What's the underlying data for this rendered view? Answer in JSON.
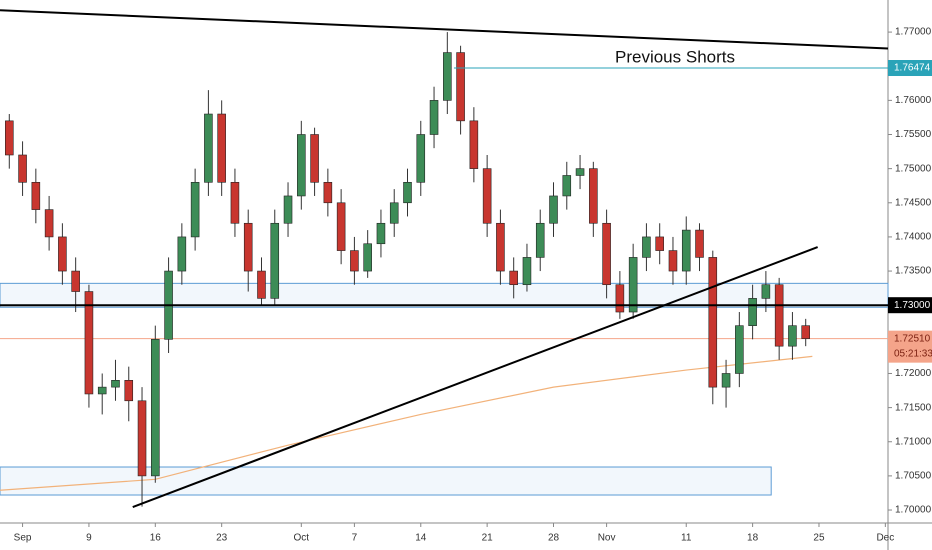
{
  "chart_data": {
    "type": "candlestick",
    "x": [
      -1,
      0,
      1,
      2,
      3,
      4,
      5,
      6,
      7,
      8,
      9,
      10,
      11,
      12,
      13,
      14,
      15,
      16,
      17,
      18,
      19,
      20,
      21,
      22,
      23,
      24,
      25,
      26,
      27,
      28,
      29,
      30,
      31,
      32,
      33,
      34,
      35,
      36,
      37,
      38,
      39,
      40,
      41,
      42,
      43,
      44,
      45,
      46,
      47,
      48,
      49,
      50,
      51,
      52,
      53,
      54,
      55,
      56,
      57,
      58,
      59
    ],
    "open": [
      1.757,
      1.752,
      1.748,
      1.744,
      1.74,
      1.735,
      1.732,
      1.717,
      1.718,
      1.719,
      1.716,
      1.705,
      1.725,
      1.735,
      1.74,
      1.748,
      1.758,
      1.748,
      1.742,
      1.735,
      1.731,
      1.742,
      1.746,
      1.755,
      1.748,
      1.745,
      1.738,
      1.735,
      1.739,
      1.742,
      1.745,
      1.748,
      1.755,
      1.76,
      1.767,
      1.757,
      1.75,
      1.742,
      1.735,
      1.733,
      1.737,
      1.742,
      1.746,
      1.749,
      1.75,
      1.742,
      1.733,
      1.729,
      1.737,
      1.74,
      1.738,
      1.735,
      1.741,
      1.737,
      1.718,
      1.72,
      1.727,
      1.731,
      1.733,
      1.724,
      1.727
    ],
    "high": [
      1.758,
      1.754,
      1.75,
      1.746,
      1.742,
      1.737,
      1.733,
      1.72,
      1.722,
      1.721,
      1.718,
      1.727,
      1.737,
      1.742,
      1.75,
      1.7615,
      1.76,
      1.75,
      1.744,
      1.737,
      1.744,
      1.748,
      1.757,
      1.756,
      1.75,
      1.747,
      1.74,
      1.741,
      1.744,
      1.747,
      1.75,
      1.757,
      1.762,
      1.77,
      1.768,
      1.759,
      1.752,
      1.744,
      1.737,
      1.739,
      1.744,
      1.748,
      1.751,
      1.752,
      1.751,
      1.744,
      1.735,
      1.739,
      1.742,
      1.742,
      1.74,
      1.743,
      1.742,
      1.738,
      1.722,
      1.729,
      1.733,
      1.735,
      1.734,
      1.729,
      1.728
    ],
    "low": [
      1.75,
      1.746,
      1.742,
      1.738,
      1.733,
      1.729,
      1.715,
      1.714,
      1.716,
      1.713,
      1.7005,
      1.704,
      1.723,
      1.733,
      1.738,
      1.746,
      1.746,
      1.74,
      1.732,
      1.73,
      1.73,
      1.74,
      1.744,
      1.746,
      1.743,
      1.736,
      1.733,
      1.734,
      1.737,
      1.74,
      1.743,
      1.746,
      1.753,
      1.758,
      1.755,
      1.748,
      1.74,
      1.733,
      1.731,
      1.732,
      1.735,
      1.74,
      1.744,
      1.747,
      1.74,
      1.731,
      1.728,
      1.728,
      1.735,
      1.736,
      1.733,
      1.733,
      1.735,
      1.7155,
      1.715,
      1.718,
      1.725,
      1.729,
      1.722,
      1.722,
      1.724
    ],
    "close": [
      1.752,
      1.748,
      1.744,
      1.74,
      1.735,
      1.732,
      1.717,
      1.718,
      1.719,
      1.716,
      1.705,
      1.725,
      1.735,
      1.74,
      1.748,
      1.758,
      1.748,
      1.742,
      1.735,
      1.731,
      1.742,
      1.746,
      1.755,
      1.748,
      1.745,
      1.738,
      1.735,
      1.739,
      1.742,
      1.745,
      1.748,
      1.755,
      1.76,
      1.767,
      1.757,
      1.75,
      1.742,
      1.735,
      1.733,
      1.737,
      1.742,
      1.746,
      1.749,
      1.75,
      1.742,
      1.733,
      1.729,
      1.737,
      1.74,
      1.738,
      1.735,
      1.741,
      1.737,
      1.718,
      1.72,
      1.727,
      1.731,
      1.733,
      1.724,
      1.727,
      1.7251
    ],
    "up_color": "#3d8c57",
    "down_color": "#c8362f",
    "xlim": [
      -1.7,
      65.2
    ],
    "ylim": [
      1.6981,
      1.7747
    ],
    "xticks": [
      {
        "value": 0,
        "label": "Sep"
      },
      {
        "value": 5,
        "label": "9"
      },
      {
        "value": 10,
        "label": "16"
      },
      {
        "value": 15,
        "label": "23"
      },
      {
        "value": 21,
        "label": "Oct"
      },
      {
        "value": 25,
        "label": "7"
      },
      {
        "value": 30,
        "label": "14"
      },
      {
        "value": 35,
        "label": "21"
      },
      {
        "value": 40,
        "label": "28"
      },
      {
        "value": 44,
        "label": "Nov"
      },
      {
        "value": 50,
        "label": "11"
      },
      {
        "value": 55,
        "label": "18"
      },
      {
        "value": 60,
        "label": "25"
      },
      {
        "value": 65,
        "label": "Dec"
      }
    ],
    "yticks": [
      {
        "value": 1.7,
        "label": "1.70000"
      },
      {
        "value": 1.705,
        "label": "1.70500"
      },
      {
        "value": 1.71,
        "label": "1.71000"
      },
      {
        "value": 1.715,
        "label": "1.71500"
      },
      {
        "value": 1.72,
        "label": "1.72000"
      },
      {
        "value": 1.735,
        "label": "1.73500"
      },
      {
        "value": 1.74,
        "label": "1.74000"
      },
      {
        "value": 1.745,
        "label": "1.74500"
      },
      {
        "value": 1.75,
        "label": "1.75000"
      },
      {
        "value": 1.755,
        "label": "1.75500"
      },
      {
        "value": 1.76,
        "label": "1.76000"
      },
      {
        "value": 1.77,
        "label": "1.77000"
      }
    ],
    "ma": {
      "color": "#f2b27a",
      "x": [
        -1.7,
        10,
        20,
        30,
        40,
        50,
        59.5
      ],
      "values": [
        1.7029,
        1.7045,
        1.7095,
        1.714,
        1.718,
        1.7205,
        1.7225
      ]
    },
    "trend_lines": [
      {
        "x": [
          -1.7,
          65.2
        ],
        "y": [
          1.7732,
          1.7676
        ],
        "color": "#000000"
      },
      {
        "x": [
          8.3,
          59.9
        ],
        "y": [
          1.70044,
          1.73851
        ],
        "color": "#000000"
      }
    ],
    "zones": [
      {
        "x": [
          -1.7,
          65.2
        ],
        "y": [
          1.7297,
          1.7332
        ],
        "color": "#5b9bd5"
      },
      {
        "x": [
          -1.7,
          56.4
        ],
        "y": [
          1.7022,
          1.7063
        ],
        "color": "#5b9bd5"
      }
    ],
    "levels": [
      {
        "value": 1.73,
        "label": "1.73000",
        "color": "#000000",
        "from": -1.7
      },
      {
        "value": 1.76474,
        "label": "1.76474",
        "color": "#2aa3b8",
        "from": 32.5
      }
    ],
    "annotation": "Previous Shorts",
    "last_price": {
      "value": 1.7251,
      "label": "1.72510",
      "countdown": "05:21:33",
      "color": "#f4a48a"
    }
  }
}
